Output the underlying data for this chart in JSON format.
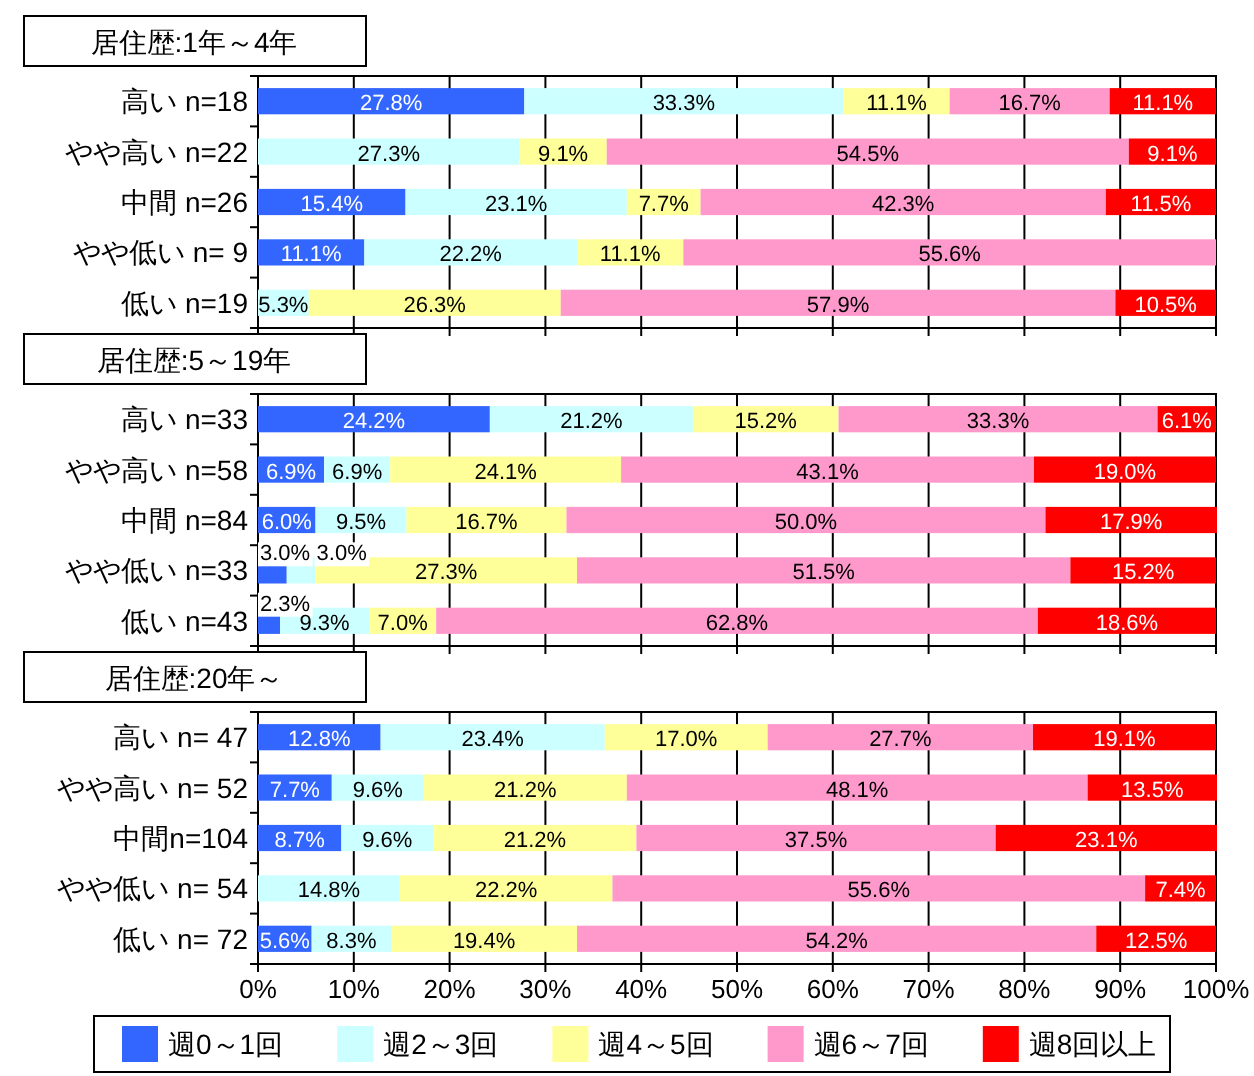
{
  "chart_data": [
    {
      "type": "bar",
      "orientation": "horizontal",
      "stacked": true,
      "title": "居住歴:1年～4年",
      "categories": [
        "高い n=18",
        "やや高い n=22",
        "中間 n=26",
        "やや低い n= 9",
        "低い n=19"
      ],
      "xlim": [
        0,
        100
      ],
      "xticks": [
        {
          "value": 0,
          "label": null
        },
        {
          "value": 10,
          "label": null
        },
        {
          "value": 20,
          "label": null
        },
        {
          "value": 30,
          "label": null
        },
        {
          "value": 40,
          "label": null
        },
        {
          "value": 50,
          "label": null
        },
        {
          "value": 60,
          "label": null
        },
        {
          "value": 70,
          "label": null
        },
        {
          "value": 80,
          "label": null
        },
        {
          "value": 90,
          "label": null
        },
        {
          "value": 100,
          "label": null
        }
      ],
      "grid": "x",
      "tick_labels": "y",
      "series": [
        {
          "color": "#3366ff",
          "values": [
            27.8,
            0,
            15.4,
            11.1,
            0
          ],
          "value_labels": [
            "27.8%",
            null,
            "15.4%",
            "11.1%",
            null
          ]
        },
        {
          "color": "#ccffff",
          "values": [
            33.3,
            27.3,
            23.1,
            22.2,
            5.3
          ],
          "value_labels": [
            "33.3%",
            "27.3%",
            "23.1%",
            "22.2%",
            "5.3%"
          ]
        },
        {
          "color": "#ffff99",
          "values": [
            11.1,
            9.1,
            7.7,
            11.1,
            26.3
          ],
          "value_labels": [
            "11.1%",
            "9.1%",
            "7.7%",
            "11.1%",
            "26.3%"
          ]
        },
        {
          "color": "#ff99cc",
          "values": [
            16.7,
            54.5,
            42.3,
            55.6,
            57.9
          ],
          "value_labels": [
            "16.7%",
            "54.5%",
            "42.3%",
            "55.6%",
            "57.9%"
          ]
        },
        {
          "color": "#ff0000",
          "values": [
            11.1,
            9.1,
            11.5,
            0,
            10.5
          ],
          "value_labels": [
            "11.1%",
            "9.1%",
            "11.5%",
            null,
            "10.5%"
          ]
        }
      ]
    },
    {
      "type": "bar",
      "orientation": "horizontal",
      "stacked": true,
      "title": "居住歴:5～19年",
      "categories": [
        "高い n=33",
        "やや高い n=58",
        "中間 n=84",
        "やや低い n=33",
        "低い n=43"
      ],
      "xlim": [
        0,
        100
      ],
      "xticks": [
        {
          "value": 0,
          "label": null
        },
        {
          "value": 10,
          "label": null
        },
        {
          "value": 20,
          "label": null
        },
        {
          "value": 30,
          "label": null
        },
        {
          "value": 40,
          "label": null
        },
        {
          "value": 50,
          "label": null
        },
        {
          "value": 60,
          "label": null
        },
        {
          "value": 70,
          "label": null
        },
        {
          "value": 80,
          "label": null
        },
        {
          "value": 90,
          "label": null
        },
        {
          "value": 100,
          "label": null
        }
      ],
      "grid": "x",
      "tick_labels": "y",
      "series": [
        {
          "color": "#3366ff",
          "values": [
            24.2,
            6.9,
            6.0,
            3.0,
            2.3
          ],
          "value_labels": [
            "24.2%",
            "6.9%",
            "6.0%",
            "3.0%",
            "2.3%"
          ]
        },
        {
          "color": "#ccffff",
          "values": [
            21.2,
            6.9,
            9.5,
            3.0,
            9.3
          ],
          "value_labels": [
            "21.2%",
            "6.9%",
            "9.5%",
            "3.0%",
            "9.3%"
          ]
        },
        {
          "color": "#ffff99",
          "values": [
            15.2,
            24.1,
            16.7,
            27.3,
            7.0
          ],
          "value_labels": [
            "15.2%",
            "24.1%",
            "16.7%",
            "27.3%",
            "7.0%"
          ]
        },
        {
          "color": "#ff99cc",
          "values": [
            33.3,
            43.1,
            50.0,
            51.5,
            62.8
          ],
          "value_labels": [
            "33.3%",
            "43.1%",
            "50.0%",
            "51.5%",
            "62.8%"
          ]
        },
        {
          "color": "#ff0000",
          "values": [
            6.1,
            19.0,
            17.9,
            15.2,
            18.6
          ],
          "value_labels": [
            "6.1%",
            "19.0%",
            "17.9%",
            "15.2%",
            "18.6%"
          ]
        }
      ]
    },
    {
      "type": "bar",
      "orientation": "horizontal",
      "stacked": true,
      "title": "居住歴:20年～",
      "categories": [
        "高い n= 47",
        "やや高い n= 52",
        "中間n=104",
        "やや低い n= 54",
        "低い n= 72"
      ],
      "xlim": [
        0,
        100
      ],
      "xticks": [
        {
          "value": 0,
          "label": "0%"
        },
        {
          "value": 10,
          "label": "10%"
        },
        {
          "value": 20,
          "label": "20%"
        },
        {
          "value": 30,
          "label": "30%"
        },
        {
          "value": 40,
          "label": "40%"
        },
        {
          "value": 50,
          "label": "50%"
        },
        {
          "value": 60,
          "label": "60%"
        },
        {
          "value": 70,
          "label": "70%"
        },
        {
          "value": 80,
          "label": "80%"
        },
        {
          "value": 90,
          "label": "90%"
        },
        {
          "value": 100,
          "label": "100%"
        }
      ],
      "grid": "x",
      "legend": "bottom",
      "series": [
        {
          "name": "週0～1回",
          "color": "#3366ff",
          "values": [
            12.8,
            7.7,
            8.7,
            0,
            5.6
          ],
          "value_labels": [
            "12.8%",
            "7.7%",
            "8.7%",
            null,
            "5.6%"
          ]
        },
        {
          "name": "週2～3回",
          "color": "#ccffff",
          "values": [
            23.4,
            9.6,
            9.6,
            14.8,
            8.3
          ],
          "value_labels": [
            "23.4%",
            "9.6%",
            "9.6%",
            "14.8%",
            "8.3%"
          ]
        },
        {
          "name": "週4～5回",
          "color": "#ffff99",
          "values": [
            17.0,
            21.2,
            21.2,
            22.2,
            19.4
          ],
          "value_labels": [
            "17.0%",
            "21.2%",
            "21.2%",
            "22.2%",
            "19.4%"
          ]
        },
        {
          "name": "週6～7回",
          "color": "#ff99cc",
          "values": [
            27.7,
            48.1,
            37.5,
            55.6,
            54.2
          ],
          "value_labels": [
            "27.7%",
            "48.1%",
            "37.5%",
            "55.6%",
            "54.2%"
          ]
        },
        {
          "name": "週8回以上",
          "color": "#ff0000",
          "values": [
            19.1,
            13.5,
            23.1,
            7.4,
            12.5
          ],
          "value_labels": [
            "19.1%",
            "13.5%",
            "23.1%",
            "7.4%",
            "12.5%"
          ]
        }
      ]
    }
  ]
}
